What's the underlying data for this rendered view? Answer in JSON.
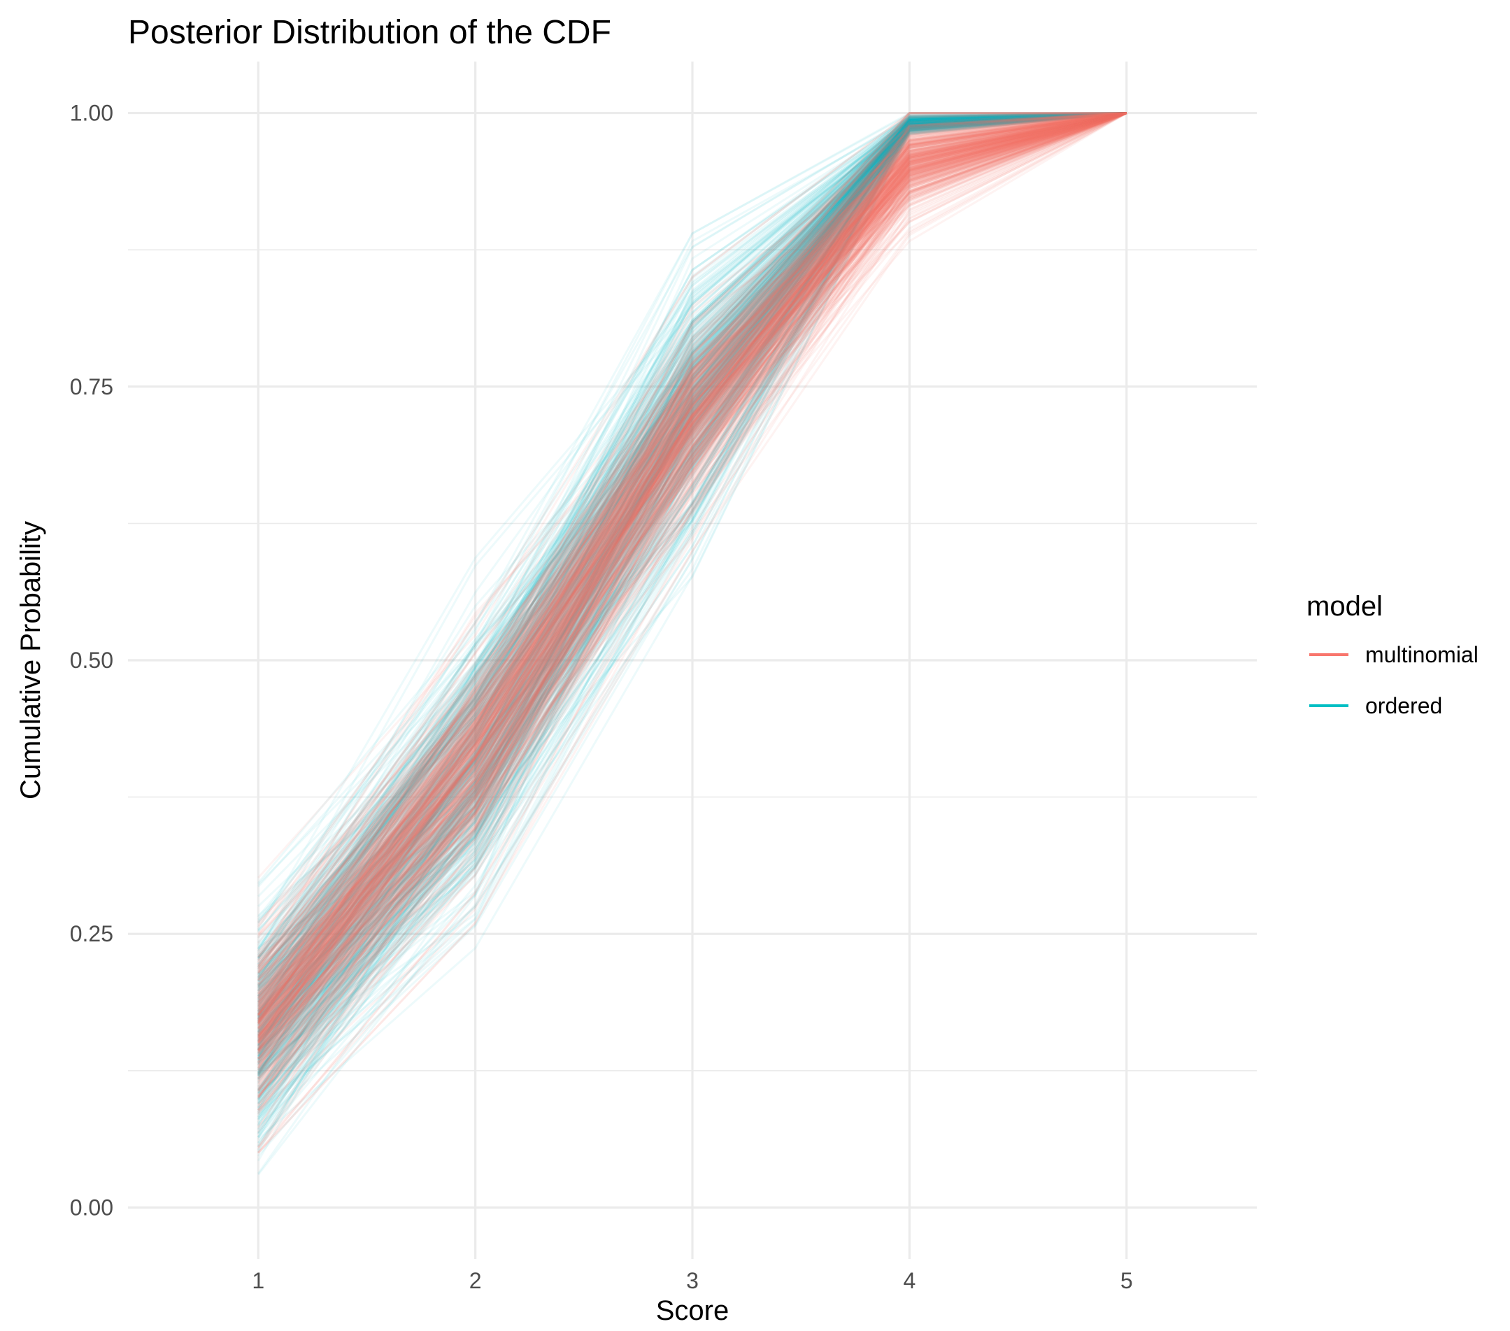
{
  "chart_data": {
    "type": "line",
    "title": "Posterior Distribution of the CDF",
    "xlabel": "Score",
    "ylabel": "Cumulative Probability",
    "x": [
      1,
      2,
      3,
      4,
      5
    ],
    "xlim": [
      0.4,
      5.6
    ],
    "ylim": [
      -0.047,
      1.047
    ],
    "x_ticks": [
      "1",
      "2",
      "3",
      "4",
      "5"
    ],
    "y_ticks": [
      "0.00",
      "0.25",
      "0.50",
      "0.75",
      "1.00"
    ],
    "y_tick_values": [
      0,
      0.25,
      0.5,
      0.75,
      1.0
    ],
    "y_minor_values": [
      0.125,
      0.375,
      0.625,
      0.875
    ],
    "grid": true,
    "legend": {
      "title": "model",
      "position": "right",
      "entries": [
        {
          "label": "multinomial",
          "color": "#F8766D"
        },
        {
          "label": "ordered",
          "color": "#00BFC4"
        }
      ]
    },
    "series": [
      {
        "name": "ordered",
        "color": "#00BFC4",
        "draws": 400,
        "mean": [
          0.16,
          0.41,
          0.74,
          0.99,
          1.0
        ],
        "sd": [
          0.055,
          0.065,
          0.06,
          0.004,
          0
        ],
        "range_min": [
          0.03,
          0.15,
          0.5,
          0.98,
          1.0
        ],
        "range_max": [
          0.35,
          0.62,
          0.89,
          1.0,
          1.0
        ]
      },
      {
        "name": "multinomial",
        "color": "#F8766D",
        "draws": 400,
        "mean": [
          0.16,
          0.41,
          0.72,
          0.955,
          1.0
        ],
        "sd": [
          0.045,
          0.05,
          0.045,
          0.025,
          0
        ],
        "range_min": [
          0.05,
          0.22,
          0.6,
          0.85,
          1.0
        ],
        "range_max": [
          0.32,
          0.58,
          0.85,
          1.0,
          1.0
        ]
      }
    ]
  }
}
